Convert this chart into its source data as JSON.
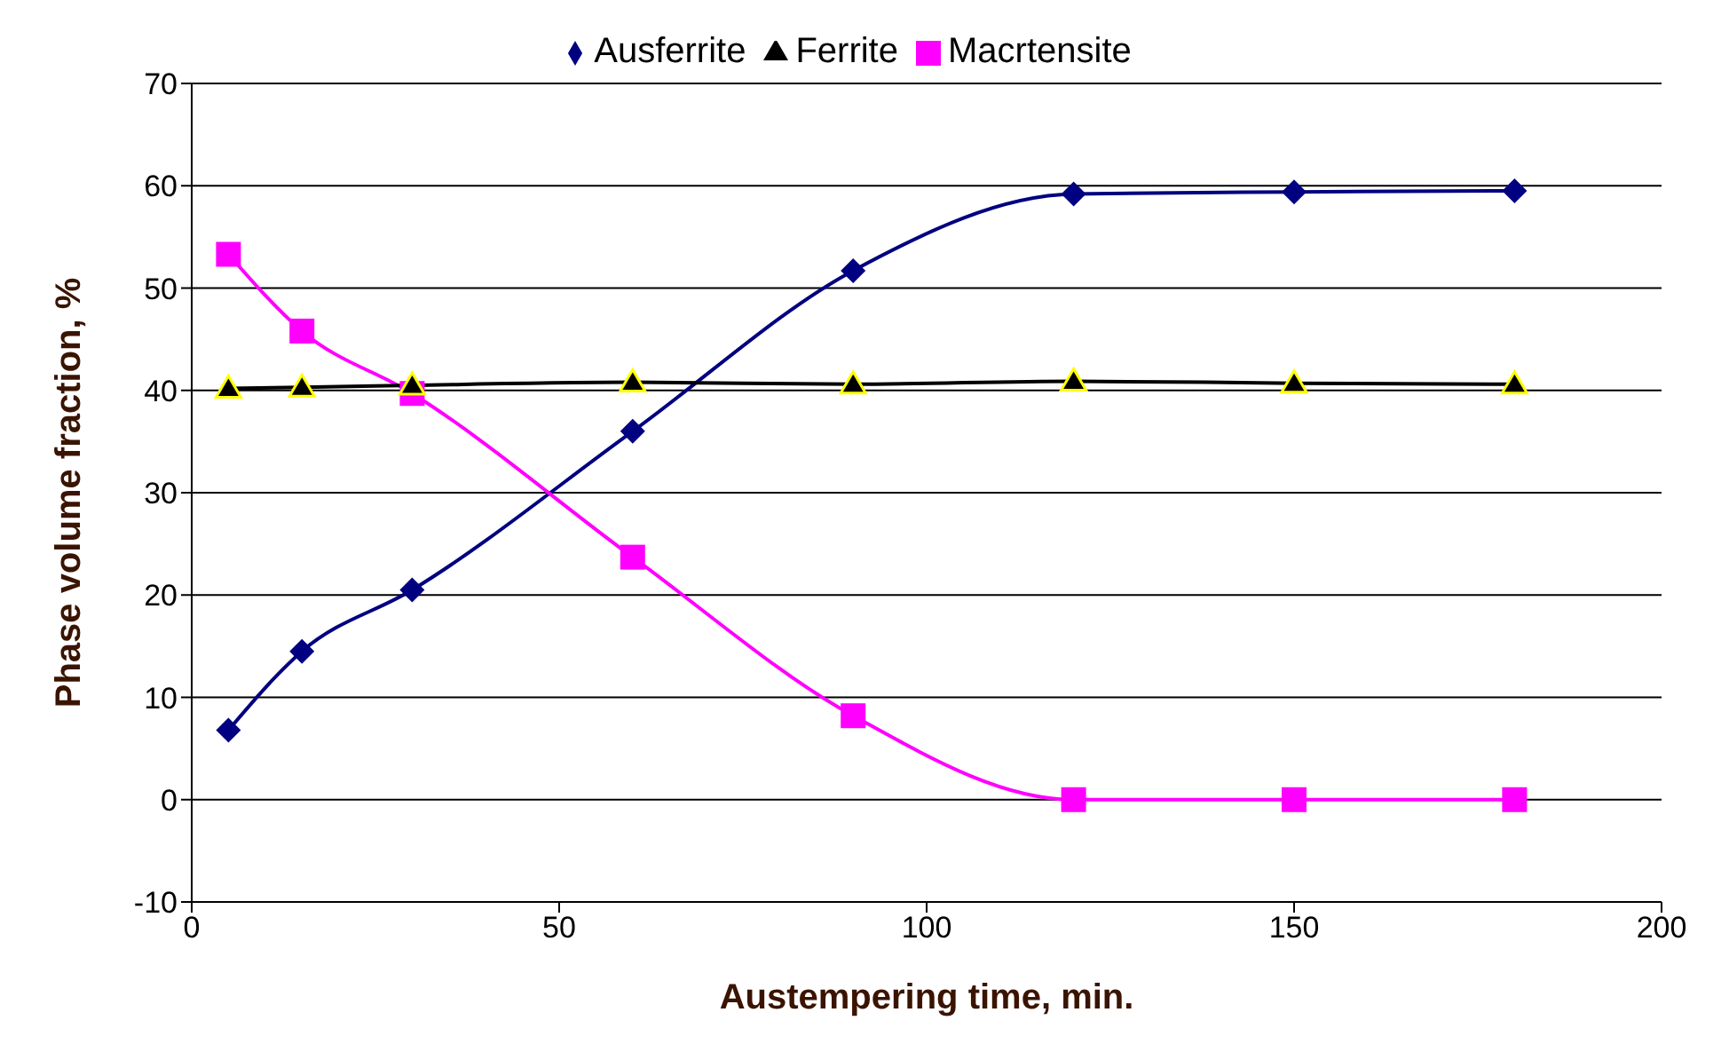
{
  "chart_data": {
    "type": "line",
    "xlabel": "Austempering time, min.",
    "ylabel": "Phase volume fraction, %",
    "x": [
      5,
      15,
      30,
      60,
      90,
      120,
      150,
      180
    ],
    "series": [
      {
        "name": "Ausferrite",
        "color": "#000080",
        "marker": "diamond",
        "values": [
          6.8,
          14.5,
          20.5,
          36,
          51.7,
          59.2,
          59.4,
          59.5
        ]
      },
      {
        "name": "Macrtensite",
        "color": "#ff00ff",
        "marker": "square",
        "values": [
          53.3,
          45.8,
          39.7,
          23.7,
          8.2,
          0,
          0,
          0
        ]
      },
      {
        "name": "Ferrite",
        "color": "#000000",
        "marker": "triangle",
        "values": [
          40.2,
          40.3,
          40.5,
          40.8,
          40.6,
          40.9,
          40.7,
          40.6
        ]
      }
    ],
    "xlim": [
      0,
      200
    ],
    "xticks": [
      0,
      50,
      100,
      150,
      200
    ],
    "ylim": [
      -10,
      70
    ],
    "yticks": [
      -10,
      0,
      10,
      20,
      30,
      40,
      50,
      60,
      70
    ],
    "grid": "y",
    "legend": "top",
    "line_style": "solid"
  }
}
